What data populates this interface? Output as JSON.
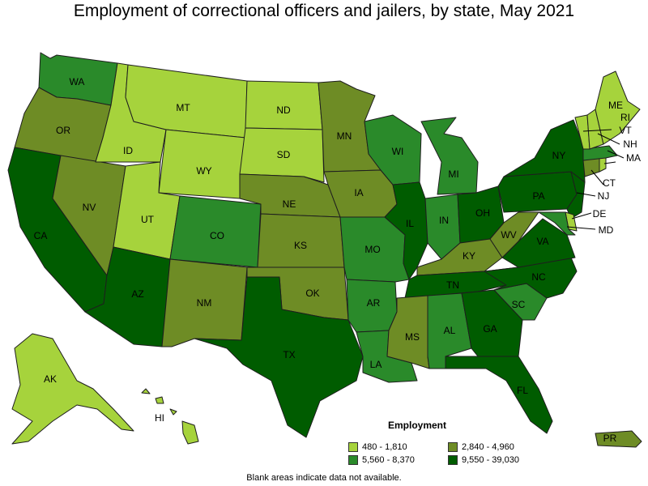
{
  "title": "Employment of correctional officers and jailers, by state, May 2021",
  "note": "Blank areas indicate data not available.",
  "legend": {
    "title": "Employment",
    "items": [
      {
        "label": "480 - 1,810",
        "color": "#a6d33c"
      },
      {
        "label": "2,840 - 4,960",
        "color": "#6e8c25"
      },
      {
        "label": "5,560 - 8,370",
        "color": "#2a8a2a"
      },
      {
        "label": "9,550 - 39,030",
        "color": "#005c00"
      }
    ]
  },
  "states": {
    "WA": {
      "label": "WA",
      "class": 2
    },
    "OR": {
      "label": "OR",
      "class": 1
    },
    "CA": {
      "label": "CA",
      "class": 3
    },
    "NV": {
      "label": "NV",
      "class": 1
    },
    "ID": {
      "label": "ID",
      "class": 0
    },
    "MT": {
      "label": "MT",
      "class": 0
    },
    "WY": {
      "label": "WY",
      "class": 0
    },
    "UT": {
      "label": "UT",
      "class": 0
    },
    "AZ": {
      "label": "AZ",
      "class": 3
    },
    "CO": {
      "label": "CO",
      "class": 2
    },
    "NM": {
      "label": "NM",
      "class": 1
    },
    "ND": {
      "label": "ND",
      "class": 0
    },
    "SD": {
      "label": "SD",
      "class": 0
    },
    "NE": {
      "label": "NE",
      "class": 1
    },
    "KS": {
      "label": "KS",
      "class": 1
    },
    "OK": {
      "label": "OK",
      "class": 1
    },
    "TX": {
      "label": "TX",
      "class": 3
    },
    "MN": {
      "label": "MN",
      "class": 1
    },
    "IA": {
      "label": "IA",
      "class": 1
    },
    "MO": {
      "label": "MO",
      "class": 2
    },
    "AR": {
      "label": "AR",
      "class": 2
    },
    "LA": {
      "label": "LA",
      "class": 2
    },
    "WI": {
      "label": "WI",
      "class": 2
    },
    "IL": {
      "label": "IL",
      "class": 3
    },
    "MI": {
      "label": "MI",
      "class": 2
    },
    "IN": {
      "label": "IN",
      "class": 2
    },
    "OH": {
      "label": "OH",
      "class": 3
    },
    "KY": {
      "label": "KY",
      "class": 1
    },
    "TN": {
      "label": "TN",
      "class": 3
    },
    "MS": {
      "label": "MS",
      "class": 1
    },
    "AL": {
      "label": "AL",
      "class": 2
    },
    "GA": {
      "label": "GA",
      "class": 3
    },
    "FL": {
      "label": "FL",
      "class": 3
    },
    "SC": {
      "label": "SC",
      "class": 2
    },
    "NC": {
      "label": "NC",
      "class": 3
    },
    "VA": {
      "label": "VA",
      "class": 3
    },
    "WV": {
      "label": "WV",
      "class": 1
    },
    "PA": {
      "label": "PA",
      "class": 3
    },
    "NY": {
      "label": "NY",
      "class": 3
    },
    "ME": {
      "label": "ME",
      "class": 0
    },
    "VT": {
      "label": "VT",
      "class": 0
    },
    "NH": {
      "label": "NH",
      "class": 0
    },
    "MA": {
      "label": "MA",
      "class": 2
    },
    "CT": {
      "label": "CT",
      "class": 1
    },
    "RI": {
      "label": "RI",
      "class": 0
    },
    "NJ": {
      "label": "NJ",
      "class": 3
    },
    "DE": {
      "label": "DE",
      "class": 0
    },
    "MD": {
      "label": "MD",
      "class": 2
    },
    "AK": {
      "label": "AK",
      "class": 0
    },
    "HI": {
      "label": "HI",
      "class": 0
    },
    "PR": {
      "label": "PR",
      "class": 1
    }
  }
}
